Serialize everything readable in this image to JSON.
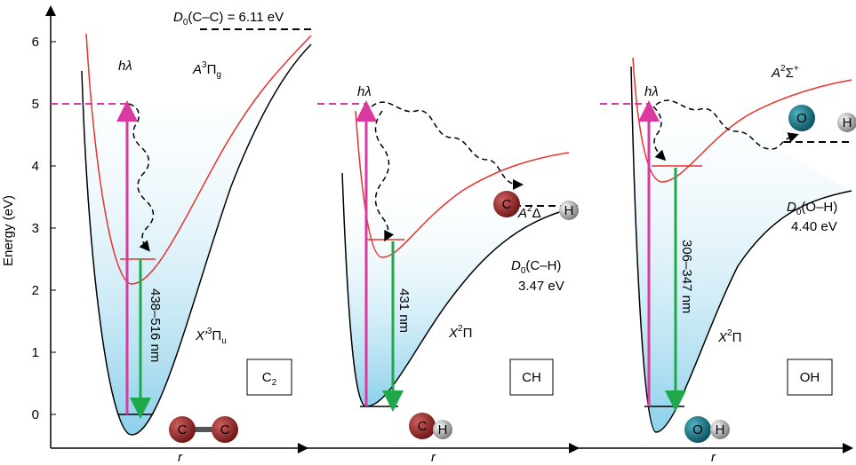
{
  "y_axis": {
    "label": "Energy (eV)",
    "ticks": [
      0,
      1,
      2,
      3,
      4,
      5,
      6
    ]
  },
  "panels": [
    {
      "x_label": "r",
      "box": {
        "main": "C",
        "sub": "2"
      },
      "excited_state": {
        "main": "A",
        "sup": "3",
        "symbol": "Π",
        "sub": "g"
      },
      "ground_state": {
        "main": "X′",
        "sup": "3",
        "symbol": "Π",
        "sub": "u"
      },
      "photon": "hλ",
      "emission": "438–516 nm",
      "dissociation": {
        "symbol": "D",
        "sub": "0",
        "species": "(C–C) = 6.11 eV"
      },
      "molecule": [
        "C",
        "C"
      ]
    },
    {
      "x_label": "r",
      "box": {
        "main": "CH"
      },
      "excited_state": {
        "main": "A",
        "sup": "2",
        "symbol": "Δ"
      },
      "ground_state": {
        "main": "X",
        "sup": "2",
        "symbol": "Π"
      },
      "photon": "hλ",
      "emission": "431 nm",
      "dissociation": {
        "symbol": "D",
        "sub": "0",
        "species": "(C–H)",
        "value": "3.47 eV"
      },
      "fragments": [
        "C",
        "H"
      ],
      "molecule": [
        "C",
        "H"
      ]
    },
    {
      "x_label": "r",
      "box": {
        "main": "OH"
      },
      "excited_state": {
        "main": "A",
        "sup": "2",
        "symbol": "Σ",
        "symbol_sup": "+"
      },
      "ground_state": {
        "main": "X",
        "sup": "2",
        "symbol": "Π"
      },
      "photon": "hλ",
      "emission": "306–347 nm",
      "dissociation": {
        "symbol": "D",
        "sub": "0",
        "species": "(O–H)",
        "value": "4.40 eV"
      },
      "fragments": [
        "O",
        "H"
      ],
      "molecule": [
        "O",
        "H"
      ]
    }
  ]
}
